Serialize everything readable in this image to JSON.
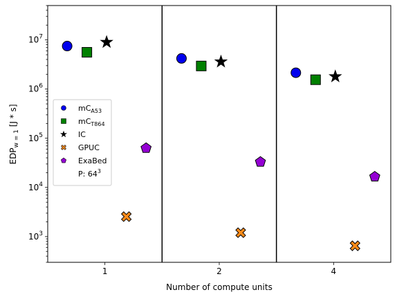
{
  "chart_data": {
    "type": "scatter",
    "title": "",
    "xlabel": "Number of compute units",
    "ylabel_main": "EDP",
    "ylabel_sub": "w = 1",
    "ylabel_unit": "[J * s]",
    "yscale": "log",
    "ylim": [
      300,
      50000000
    ],
    "categories": [
      "1",
      "2",
      "4"
    ],
    "category_separators": true,
    "grid": false,
    "legend_position": "center-left",
    "series": [
      {
        "name": "mC",
        "name_sub": "A53",
        "marker": "circle",
        "color": "#0000ee",
        "values": [
          7500000,
          4200000,
          2150000
        ]
      },
      {
        "name": "mC",
        "name_sub": "T864",
        "marker": "square",
        "color": "#008000",
        "values": [
          5600000,
          2950000,
          1550000
        ]
      },
      {
        "name": "IC",
        "name_sub": "",
        "marker": "star",
        "color": "#000000",
        "values": [
          9000000,
          3600000,
          1800000
        ]
      },
      {
        "name": "GPUC",
        "name_sub": "",
        "marker": "x",
        "color": "#ff8c1a",
        "values": [
          2550,
          1200,
          650
        ]
      },
      {
        "name": "ExaBed",
        "name_sub": "",
        "marker": "pentagon",
        "color": "#9400d3",
        "values": [
          63000,
          33000,
          16500
        ]
      }
    ],
    "legend_extra": {
      "label": "P: 64",
      "superscript": "3"
    }
  }
}
